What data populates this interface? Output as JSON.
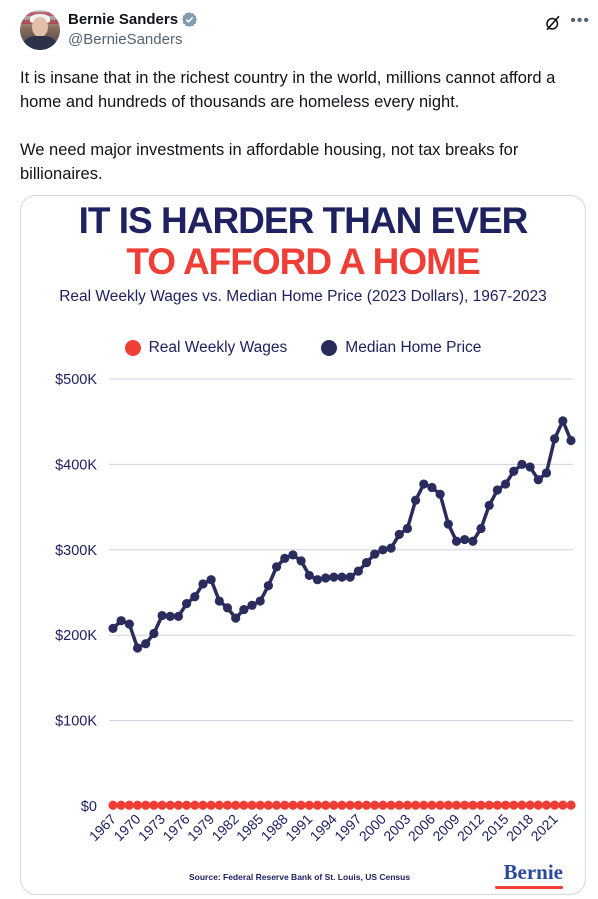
{
  "tweet": {
    "author_name": "Bernie Sanders",
    "handle": "@BernieSanders",
    "text_p1": "It is insane that in the richest country in the world, millions cannot afford a home and hundreds of thousands are homeless every night.",
    "text_p2": "We need major investments in affordable housing, not tax breaks for billionaires.",
    "icons": {
      "verified": "verified-badge-icon",
      "grok": "grok-icon",
      "more": "more-icon"
    },
    "colors": {
      "verified": "#829aab",
      "handle": "#536471"
    }
  },
  "media": {
    "headline_line1": "IT IS HARDER THAN EVER",
    "headline_line2": "TO AFFORD A HOME",
    "source": "Source: Federal Reserve Bank of St. Louis, US Census",
    "brand": "Bernie"
  },
  "chart_data": {
    "type": "line",
    "title": "Real Weekly Wages vs. Median Home Price (2023 Dollars), 1967-2023",
    "xlabel": "",
    "ylabel": "",
    "ylim": [
      0,
      500000
    ],
    "y_ticks": [
      0,
      100000,
      200000,
      300000,
      400000,
      500000
    ],
    "y_tick_labels": [
      "$0",
      "$100K",
      "$200K",
      "$300K",
      "$400K",
      "$500K"
    ],
    "x_tick_labels": [
      "1967",
      "1970",
      "1973",
      "1976",
      "1979",
      "1982",
      "1985",
      "1988",
      "1991",
      "1994",
      "1997",
      "2000",
      "2003",
      "2006",
      "2009",
      "2012",
      "2015",
      "2018",
      "2021"
    ],
    "grid": true,
    "legend_position": "top-center",
    "x": [
      1967,
      1968,
      1969,
      1970,
      1971,
      1972,
      1973,
      1974,
      1975,
      1976,
      1977,
      1978,
      1979,
      1980,
      1981,
      1982,
      1983,
      1984,
      1985,
      1986,
      1987,
      1988,
      1989,
      1990,
      1991,
      1992,
      1993,
      1994,
      1995,
      1996,
      1997,
      1998,
      1999,
      2000,
      2001,
      2002,
      2003,
      2004,
      2005,
      2006,
      2007,
      2008,
      2009,
      2010,
      2011,
      2012,
      2013,
      2014,
      2015,
      2016,
      2017,
      2018,
      2019,
      2020,
      2021,
      2022,
      2023
    ],
    "series": [
      {
        "name": "Real Weekly Wages",
        "color": "#ef3e36",
        "values": [
          880,
          900,
          910,
          880,
          890,
          900,
          905,
          880,
          870,
          880,
          890,
          890,
          870,
          850,
          850,
          850,
          860,
          870,
          870,
          890,
          890,
          890,
          880,
          870,
          860,
          860,
          870,
          870,
          870,
          870,
          880,
          900,
          910,
          920,
          930,
          940,
          940,
          930,
          930,
          930,
          940,
          950,
          970,
          960,
          950,
          950,
          950,
          950,
          970,
          980,
          990,
          990,
          1010,
          1060,
          1030,
          1000,
          1000
        ]
      },
      {
        "name": "Median Home Price",
        "color": "#2a2c5e",
        "values": [
          208000,
          217000,
          213000,
          185000,
          190000,
          202000,
          223000,
          222000,
          222000,
          237000,
          245000,
          260000,
          265000,
          240000,
          232000,
          220000,
          230000,
          235000,
          240000,
          258000,
          280000,
          290000,
          294000,
          287000,
          270000,
          265000,
          267000,
          268000,
          268000,
          268000,
          275000,
          285000,
          295000,
          300000,
          302000,
          318000,
          325000,
          358000,
          377000,
          373000,
          365000,
          330000,
          310000,
          312000,
          310000,
          325000,
          352000,
          370000,
          377000,
          392000,
          400000,
          397000,
          382000,
          390000,
          430000,
          451000,
          428000
        ]
      }
    ]
  }
}
